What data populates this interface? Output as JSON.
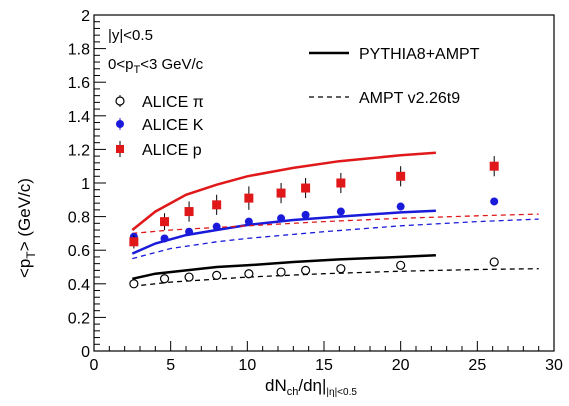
{
  "chart_data": {
    "type": "scatter",
    "xlabel_main": "dN",
    "xlabel_sub1": "ch",
    "xlabel_mid": "/dη|",
    "xlabel_sub2": "|η|<0.5",
    "ylabel_main": "<p",
    "ylabel_sub": "T",
    "ylabel_tail": "> (GeV/c)",
    "xlim": [
      0,
      30
    ],
    "ylim": [
      0,
      2
    ],
    "x_ticks": [
      0,
      5,
      10,
      15,
      20,
      25,
      30
    ],
    "x_tick_labels": [
      "0",
      "5",
      "10",
      "15",
      "20",
      "25",
      "30"
    ],
    "y_ticks": [
      0,
      0.2,
      0.4,
      0.6,
      0.8,
      1,
      1.2,
      1.4,
      1.6,
      1.8,
      2
    ],
    "y_tick_labels": [
      "0",
      "0.2",
      "0.4",
      "0.6",
      "0.8",
      "1",
      "1.2",
      "1.4",
      "1.6",
      "1.8",
      "2"
    ],
    "annotations": {
      "rapidity": "|y|<0.5",
      "pt_pre": "0<p",
      "pt_sub": "T",
      "pt_post": "<3 GeV/c"
    },
    "legend_lines": [
      {
        "name": "PYTHIA8+AMPT",
        "style": "solid"
      },
      {
        "name": "AMPT v2.26t9",
        "style": "dashed"
      }
    ],
    "series": [
      {
        "name": "ALICE π",
        "color": "#000000",
        "marker": "open-circle",
        "x": [
          2.6,
          4.6,
          6.2,
          8.0,
          10.1,
          12.2,
          13.8,
          16.1,
          20.0,
          26.1
        ],
        "y": [
          0.4,
          0.43,
          0.44,
          0.45,
          0.46,
          0.47,
          0.48,
          0.49,
          0.51,
          0.53
        ],
        "err": [
          0.01,
          0.01,
          0.01,
          0.01,
          0.01,
          0.01,
          0.01,
          0.01,
          0.01,
          0.01
        ]
      },
      {
        "name": "ALICE K",
        "color": "#1a1adb",
        "marker": "filled-circle",
        "x": [
          2.6,
          4.6,
          6.2,
          8.0,
          10.1,
          12.2,
          13.8,
          16.1,
          20.0,
          26.1
        ],
        "y": [
          0.68,
          0.67,
          0.71,
          0.74,
          0.77,
          0.79,
          0.81,
          0.83,
          0.86,
          0.89
        ],
        "err": [
          0.02,
          0.02,
          0.02,
          0.02,
          0.02,
          0.02,
          0.02,
          0.02,
          0.02,
          0.02
        ]
      },
      {
        "name": "ALICE p",
        "color": "#e0181a",
        "marker": "filled-square",
        "x": [
          2.6,
          4.6,
          6.2,
          8.0,
          10.1,
          12.2,
          13.8,
          16.1,
          20.0,
          26.1
        ],
        "y": [
          0.65,
          0.77,
          0.83,
          0.87,
          0.91,
          0.94,
          0.97,
          1.0,
          1.04,
          1.1
        ],
        "err": [
          0.04,
          0.05,
          0.06,
          0.06,
          0.07,
          0.06,
          0.06,
          0.06,
          0.06,
          0.06
        ]
      }
    ],
    "model_curves": [
      {
        "model": "PYTHIA8+AMPT",
        "particle": "p",
        "color": "#e0181a",
        "style": "solid",
        "x": [
          2.5,
          4,
          6,
          8,
          10,
          13,
          16,
          20,
          22.3
        ],
        "y": [
          0.72,
          0.83,
          0.93,
          0.99,
          1.04,
          1.09,
          1.13,
          1.165,
          1.18
        ]
      },
      {
        "model": "PYTHIA8+AMPT",
        "particle": "K",
        "color": "#1a1adb",
        "style": "solid",
        "x": [
          2.5,
          4,
          6,
          8,
          10,
          13,
          16,
          20,
          22.3
        ],
        "y": [
          0.58,
          0.64,
          0.69,
          0.72,
          0.75,
          0.78,
          0.8,
          0.825,
          0.835
        ]
      },
      {
        "model": "PYTHIA8+AMPT",
        "particle": "π",
        "color": "#000000",
        "style": "solid",
        "x": [
          2.5,
          4,
          6,
          8,
          10,
          13,
          16,
          20,
          22.3
        ],
        "y": [
          0.43,
          0.46,
          0.48,
          0.5,
          0.51,
          0.53,
          0.545,
          0.56,
          0.57
        ]
      },
      {
        "model": "AMPT v2.26t9",
        "particle": "p",
        "color": "#e0181a",
        "style": "dashed",
        "x": [
          2.5,
          5,
          10,
          15,
          20,
          25,
          29
        ],
        "y": [
          0.7,
          0.72,
          0.745,
          0.77,
          0.79,
          0.805,
          0.815
        ]
      },
      {
        "model": "AMPT v2.26t9",
        "particle": "K",
        "color": "#1a1adb",
        "style": "dashed",
        "x": [
          2.5,
          5,
          8,
          10,
          15,
          20,
          25,
          29
        ],
        "y": [
          0.55,
          0.61,
          0.65,
          0.67,
          0.71,
          0.745,
          0.77,
          0.785
        ]
      },
      {
        "model": "AMPT v2.26t9",
        "particle": "π",
        "color": "#000000",
        "style": "dashed",
        "x": [
          2.5,
          5,
          10,
          15,
          20,
          25,
          29
        ],
        "y": [
          0.385,
          0.41,
          0.44,
          0.46,
          0.475,
          0.485,
          0.49
        ]
      }
    ]
  }
}
